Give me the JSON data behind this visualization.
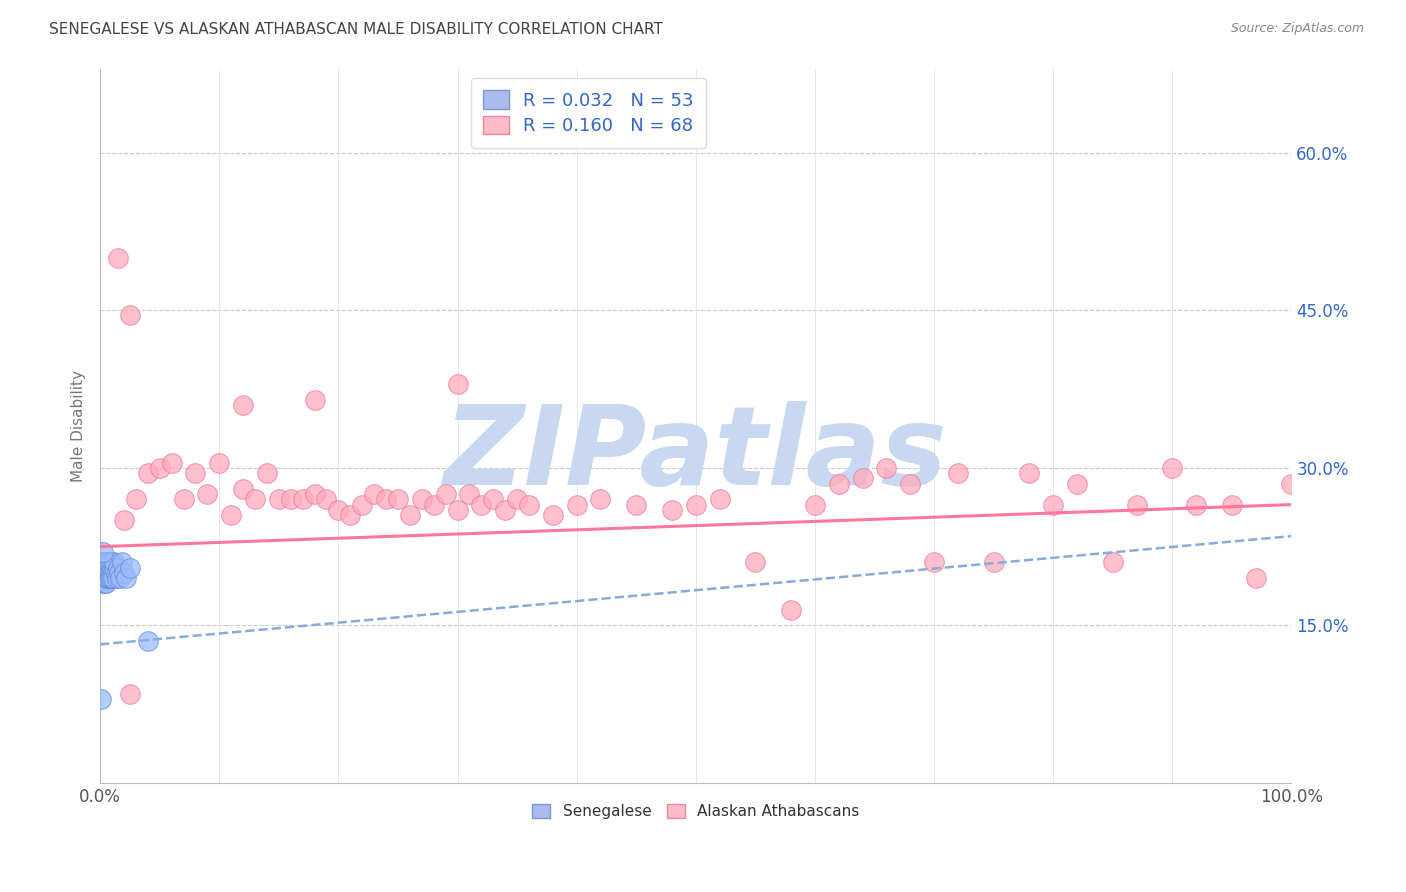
{
  "title": "SENEGALESE VS ALASKAN ATHABASCAN MALE DISABILITY CORRELATION CHART",
  "source": "Source: ZipAtlas.com",
  "ylabel": "Male Disability",
  "xlim": [
    0.0,
    1.0
  ],
  "ylim": [
    0.0,
    0.68
  ],
  "yticks": [
    0.15,
    0.3,
    0.45,
    0.6
  ],
  "ytick_labels": [
    "15.0%",
    "30.0%",
    "45.0%",
    "60.0%"
  ],
  "xticks": [
    0.0,
    0.1,
    0.2,
    0.3,
    0.4,
    0.5,
    0.6,
    0.7,
    0.8,
    0.9,
    1.0
  ],
  "xtick_labels": [
    "0.0%",
    "",
    "",
    "",
    "",
    "",
    "",
    "",
    "",
    "",
    "100.0%"
  ],
  "background_color": "#ffffff",
  "grid_color": "#cccccc",
  "watermark": "ZIPatlas",
  "watermark_color": "#c8d8f0",
  "senegalese_color": "#99bbff",
  "senegalese_edge": "#6688cc",
  "senegalese_line_color": "#88aadd",
  "alaskan_color": "#ffaabb",
  "alaskan_edge": "#ee7799",
  "alaskan_line_color": "#ff7799",
  "senegalese_x": [
    0.001,
    0.001,
    0.001,
    0.002,
    0.002,
    0.002,
    0.002,
    0.003,
    0.003,
    0.003,
    0.003,
    0.003,
    0.004,
    0.004,
    0.004,
    0.004,
    0.004,
    0.005,
    0.005,
    0.005,
    0.005,
    0.005,
    0.006,
    0.006,
    0.006,
    0.006,
    0.007,
    0.007,
    0.007,
    0.007,
    0.008,
    0.008,
    0.008,
    0.009,
    0.009,
    0.01,
    0.01,
    0.011,
    0.011,
    0.012,
    0.012,
    0.013,
    0.014,
    0.015,
    0.016,
    0.017,
    0.018,
    0.02,
    0.022,
    0.025,
    0.001,
    0.002,
    0.04
  ],
  "senegalese_y": [
    0.2,
    0.21,
    0.195,
    0.195,
    0.205,
    0.21,
    0.19,
    0.195,
    0.2,
    0.205,
    0.195,
    0.21,
    0.2,
    0.195,
    0.205,
    0.21,
    0.19,
    0.2,
    0.195,
    0.205,
    0.19,
    0.21,
    0.2,
    0.195,
    0.205,
    0.21,
    0.195,
    0.2,
    0.205,
    0.21,
    0.2,
    0.195,
    0.21,
    0.2,
    0.195,
    0.205,
    0.21,
    0.2,
    0.195,
    0.205,
    0.21,
    0.2,
    0.195,
    0.205,
    0.2,
    0.195,
    0.21,
    0.2,
    0.195,
    0.205,
    0.08,
    0.22,
    0.135
  ],
  "senegalese_line_x0": 0.0,
  "senegalese_line_x1": 1.0,
  "senegalese_line_y0": 0.132,
  "senegalese_line_y1": 0.235,
  "alaskan_x": [
    0.02,
    0.025,
    0.03,
    0.04,
    0.05,
    0.06,
    0.07,
    0.08,
    0.09,
    0.1,
    0.11,
    0.12,
    0.13,
    0.14,
    0.15,
    0.16,
    0.17,
    0.18,
    0.19,
    0.2,
    0.21,
    0.22,
    0.23,
    0.24,
    0.25,
    0.26,
    0.27,
    0.28,
    0.29,
    0.3,
    0.31,
    0.32,
    0.33,
    0.34,
    0.35,
    0.36,
    0.38,
    0.4,
    0.42,
    0.45,
    0.48,
    0.5,
    0.52,
    0.55,
    0.58,
    0.6,
    0.62,
    0.64,
    0.66,
    0.68,
    0.7,
    0.72,
    0.75,
    0.78,
    0.8,
    0.82,
    0.85,
    0.87,
    0.9,
    0.92,
    0.95,
    0.97,
    1.0,
    0.015,
    0.025,
    0.12,
    0.18,
    0.3
  ],
  "alaskan_y": [
    0.25,
    0.085,
    0.27,
    0.295,
    0.3,
    0.305,
    0.27,
    0.295,
    0.275,
    0.305,
    0.255,
    0.28,
    0.27,
    0.295,
    0.27,
    0.27,
    0.27,
    0.275,
    0.27,
    0.26,
    0.255,
    0.265,
    0.275,
    0.27,
    0.27,
    0.255,
    0.27,
    0.265,
    0.275,
    0.26,
    0.275,
    0.265,
    0.27,
    0.26,
    0.27,
    0.265,
    0.255,
    0.265,
    0.27,
    0.265,
    0.26,
    0.265,
    0.27,
    0.21,
    0.165,
    0.265,
    0.285,
    0.29,
    0.3,
    0.285,
    0.21,
    0.295,
    0.21,
    0.295,
    0.265,
    0.285,
    0.21,
    0.265,
    0.3,
    0.265,
    0.265,
    0.195,
    0.285,
    0.5,
    0.445,
    0.36,
    0.365,
    0.38
  ],
  "alaskan_line_x0": 0.0,
  "alaskan_line_x1": 1.0,
  "alaskan_line_y0": 0.225,
  "alaskan_line_y1": 0.265
}
